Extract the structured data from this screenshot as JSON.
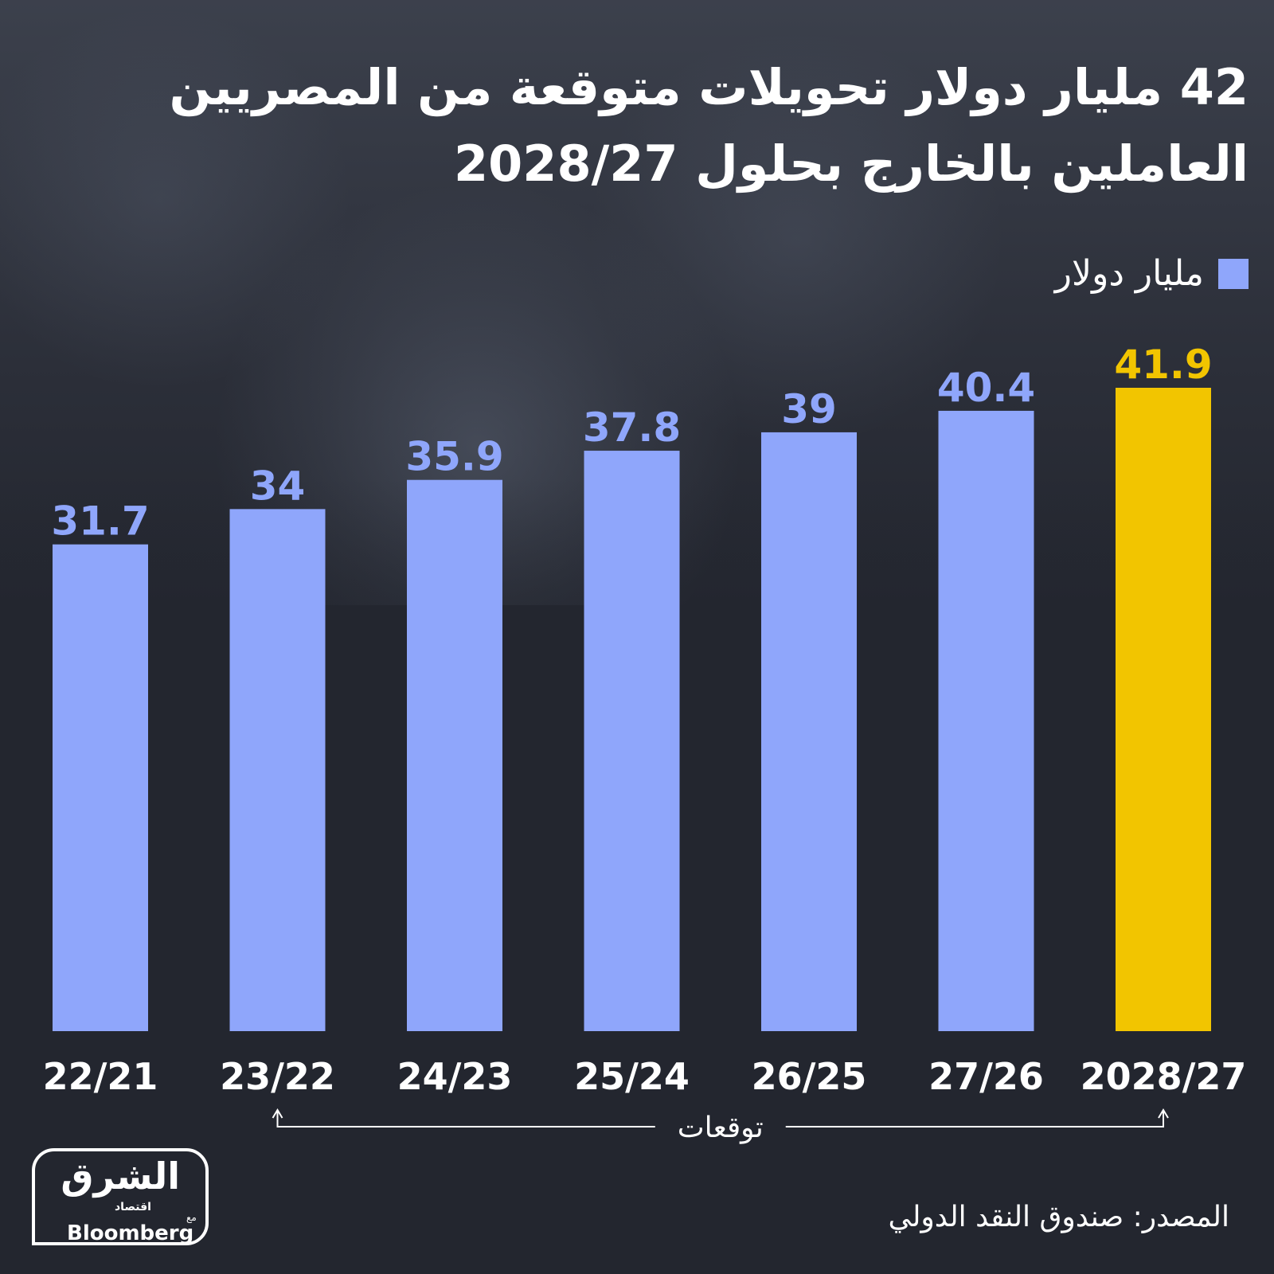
{
  "title": "42 مليار دولار تحويلات متوقعة من المصريين العاملين بالخارج بحلول 2028/27",
  "legend": {
    "label": "مليار دولار"
  },
  "forecast_label": "توقعات",
  "source": "المصدر: صندوق النقد الدولي",
  "logo": {
    "main": "الشرق",
    "sub": "اقتصاد",
    "with": "مع",
    "partner": "Bloomberg"
  },
  "colors": {
    "background": "#23262f",
    "bar": "#8fa6fb",
    "highlight": "#f2c500",
    "text": "#ffffff"
  },
  "chart_data": {
    "type": "bar",
    "categories": [
      "22/21",
      "23/22",
      "24/23",
      "25/24",
      "26/25",
      "27/26",
      "2028/27"
    ],
    "values": [
      31.7,
      34,
      35.9,
      37.8,
      39,
      40.4,
      41.9
    ],
    "value_labels": [
      "31.7",
      "34",
      "35.9",
      "37.8",
      "39",
      "40.4",
      "41.9"
    ],
    "series": [
      {
        "name": "مليار دولار",
        "values": [
          31.7,
          34,
          35.9,
          37.8,
          39,
          40.4,
          41.9
        ]
      }
    ],
    "highlight_index": 6,
    "forecast_range": [
      "23/22",
      "2028/27"
    ],
    "ylim": [
      0,
      41.9
    ],
    "grid": false,
    "legend_position": "top-right"
  }
}
